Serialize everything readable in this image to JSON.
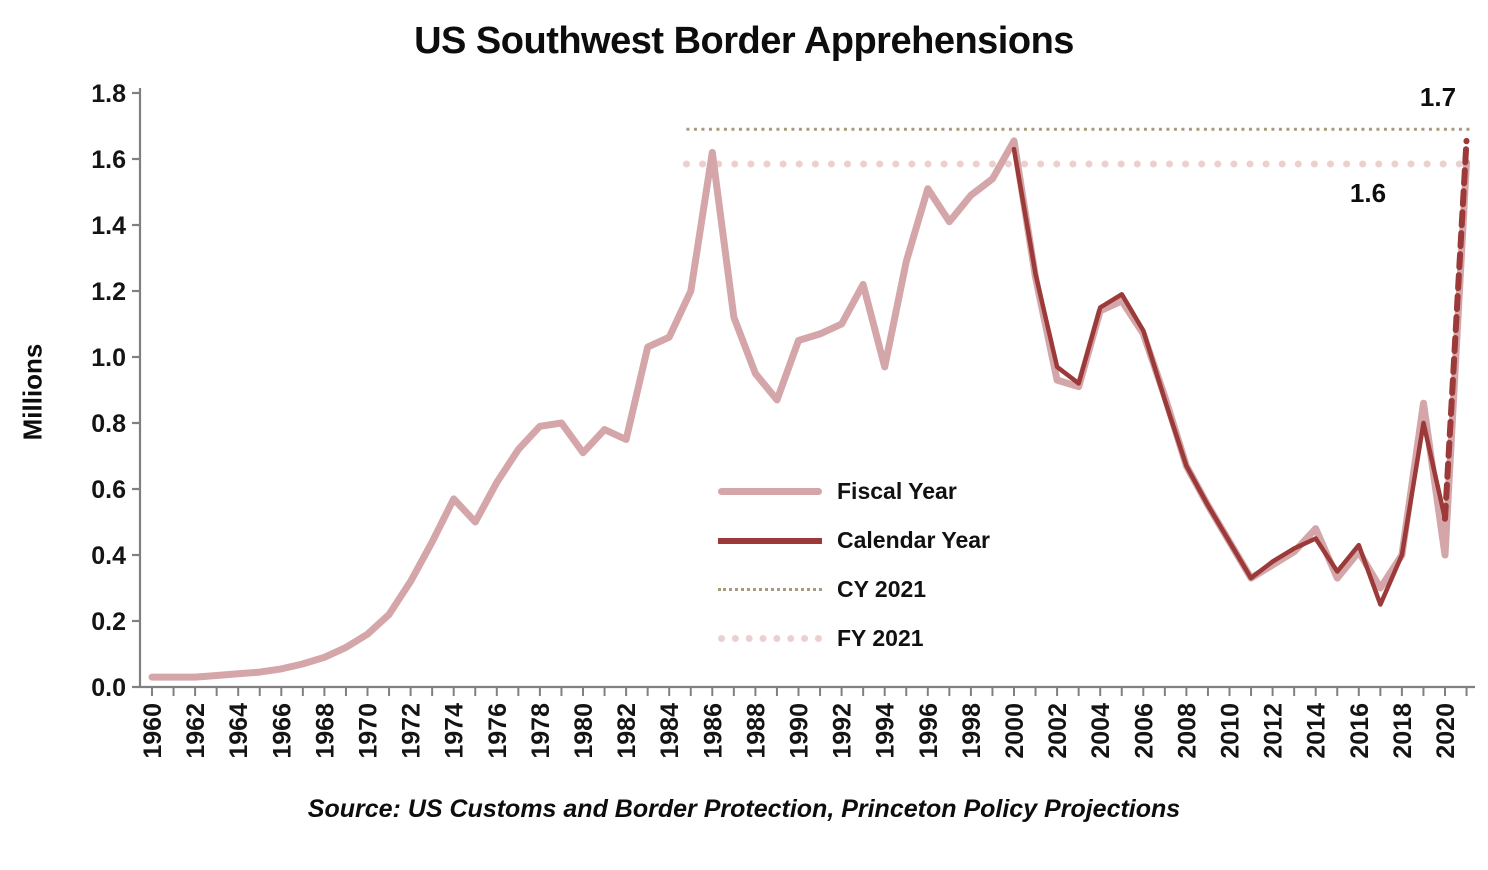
{
  "chart_data": {
    "type": "line",
    "title": "US Southwest Border Apprehensions",
    "ylabel": "Millions",
    "xlabel": "",
    "source": "Source: US Customs and Border Protection, Princeton Policy Projections",
    "ylim": [
      0.0,
      1.8
    ],
    "xlim": [
      1960,
      2021
    ],
    "grid": false,
    "legend_position": "center-right",
    "ytick_labels": [
      "0.0",
      "0.2",
      "0.4",
      "0.6",
      "0.8",
      "1.0",
      "1.2",
      "1.4",
      "1.6",
      "1.8"
    ],
    "xtick_labels": [
      "1960",
      "1962",
      "1964",
      "1966",
      "1968",
      "1970",
      "1972",
      "1974",
      "1976",
      "1978",
      "1980",
      "1982",
      "1984",
      "1986",
      "1988",
      "1990",
      "1992",
      "1994",
      "1996",
      "1998",
      "2000",
      "2002",
      "2004",
      "2006",
      "2008",
      "2010",
      "2012",
      "2014",
      "2016",
      "2018",
      "2020"
    ],
    "axis_color": "#808080",
    "series": [
      {
        "name": "Fiscal Year",
        "color": "#d4a6a9",
        "width": 7,
        "dash": null,
        "points": [
          [
            1960,
            0.03
          ],
          [
            1961,
            0.03
          ],
          [
            1962,
            0.03
          ],
          [
            1963,
            0.035
          ],
          [
            1964,
            0.04
          ],
          [
            1965,
            0.045
          ],
          [
            1966,
            0.055
          ],
          [
            1967,
            0.07
          ],
          [
            1968,
            0.09
          ],
          [
            1969,
            0.12
          ],
          [
            1970,
            0.16
          ],
          [
            1971,
            0.22
          ],
          [
            1972,
            0.32
          ],
          [
            1973,
            0.44
          ],
          [
            1974,
            0.57
          ],
          [
            1975,
            0.5
          ],
          [
            1976,
            0.62
          ],
          [
            1977,
            0.72
          ],
          [
            1978,
            0.79
          ],
          [
            1979,
            0.8
          ],
          [
            1980,
            0.71
          ],
          [
            1981,
            0.78
          ],
          [
            1982,
            0.75
          ],
          [
            1983,
            1.03
          ],
          [
            1984,
            1.06
          ],
          [
            1985,
            1.2
          ],
          [
            1986,
            1.62
          ],
          [
            1987,
            1.12
          ],
          [
            1988,
            0.95
          ],
          [
            1989,
            0.87
          ],
          [
            1990,
            1.05
          ],
          [
            1991,
            1.07
          ],
          [
            1992,
            1.1
          ],
          [
            1993,
            1.22
          ],
          [
            1994,
            0.97
          ],
          [
            1995,
            1.29
          ],
          [
            1996,
            1.51
          ],
          [
            1997,
            1.41
          ],
          [
            1998,
            1.49
          ],
          [
            1999,
            1.54
          ],
          [
            2000,
            1.655
          ],
          [
            2001,
            1.24
          ],
          [
            2002,
            0.93
          ],
          [
            2003,
            0.91
          ],
          [
            2004,
            1.14
          ],
          [
            2005,
            1.17
          ],
          [
            2006,
            1.07
          ],
          [
            2007,
            0.88
          ],
          [
            2008,
            0.67
          ],
          [
            2009,
            0.55
          ],
          [
            2010,
            0.44
          ],
          [
            2011,
            0.33
          ],
          [
            2012,
            0.37
          ],
          [
            2013,
            0.41
          ],
          [
            2014,
            0.48
          ],
          [
            2015,
            0.33
          ],
          [
            2016,
            0.41
          ],
          [
            2017,
            0.3
          ],
          [
            2018,
            0.4
          ],
          [
            2019,
            0.86
          ],
          [
            2020,
            0.4
          ],
          [
            2021,
            1.59
          ]
        ]
      },
      {
        "name": "Calendar Year",
        "color": "#9b3a38",
        "width": 4.5,
        "dash": null,
        "points": [
          [
            2000,
            1.63
          ],
          [
            2001,
            1.25
          ],
          [
            2002,
            0.97
          ],
          [
            2003,
            0.92
          ],
          [
            2004,
            1.15
          ],
          [
            2005,
            1.19
          ],
          [
            2006,
            1.08
          ],
          [
            2007,
            0.87
          ],
          [
            2008,
            0.67
          ],
          [
            2009,
            0.55
          ],
          [
            2010,
            0.44
          ],
          [
            2011,
            0.33
          ],
          [
            2012,
            0.38
          ],
          [
            2013,
            0.42
          ],
          [
            2014,
            0.45
          ],
          [
            2015,
            0.35
          ],
          [
            2016,
            0.43
          ],
          [
            2017,
            0.25
          ],
          [
            2018,
            0.4
          ],
          [
            2019,
            0.8
          ],
          [
            2020,
            0.51
          ]
        ]
      },
      {
        "name": "CY 2021 projection segment",
        "color": "#9b3a38",
        "width": 6,
        "dash": "13,8",
        "points": [
          [
            2020,
            0.51
          ],
          [
            2021,
            1.655
          ]
        ]
      }
    ],
    "ref_lines": [
      {
        "name": "CY 2021",
        "label": "1.7",
        "value": 1.69,
        "span": [
          1984.8,
          2021.25
        ],
        "color": "#a89a7c",
        "width": 3,
        "dash": "3,4.5",
        "linecap": "butt"
      },
      {
        "name": "FY 2021",
        "label": "1.6",
        "value": 1.585,
        "span": [
          1984.8,
          2021.25
        ],
        "color": "#ecd0d0",
        "width": 7,
        "dash": "0.1,16",
        "linecap": "round"
      }
    ],
    "legend": [
      "Fiscal Year",
      "Calendar Year",
      "CY 2021",
      "FY 2021"
    ]
  }
}
